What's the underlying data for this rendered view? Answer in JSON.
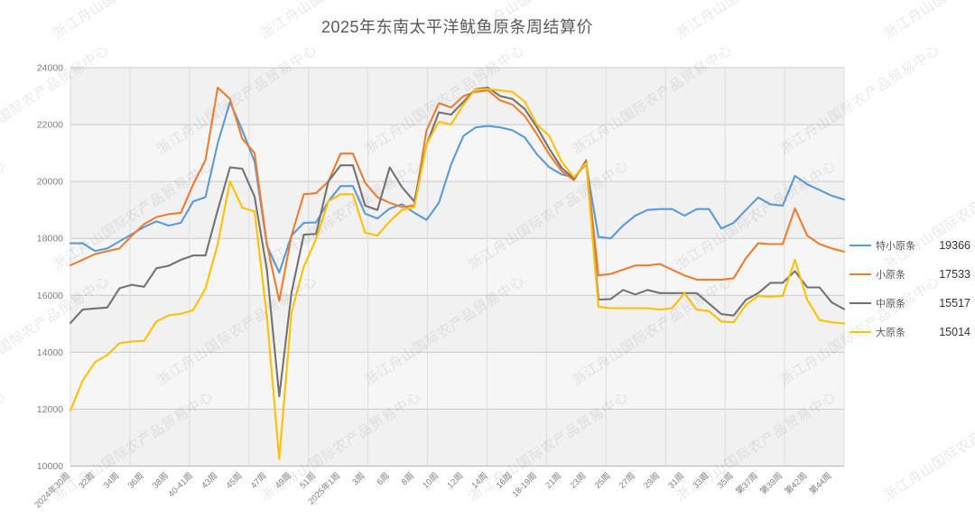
{
  "title": "2025年东南太平洋鱿鱼原条周结算价",
  "watermark": {
    "text": "浙江舟山国际农产品贸易中心"
  },
  "legend": {
    "items": [
      {
        "name": "特小原条",
        "value": "19366",
        "color": "#5B9BD5"
      },
      {
        "name": "小原条",
        "value": "17533",
        "color": "#ED7D31"
      },
      {
        "name": "中原条",
        "value": "15517",
        "color": "#737373"
      },
      {
        "name": "大原条",
        "value": "15014",
        "color": "#FFC000"
      }
    ]
  },
  "chart_data": {
    "type": "line",
    "title": "2025年东南太平洋鱿鱼原条周结算价",
    "xlabel": "",
    "ylabel": "",
    "ylim": [
      10000,
      24000
    ],
    "y_ticks": [
      24000,
      22000,
      20000,
      18000,
      16000,
      14000,
      12000,
      10000
    ],
    "grid": true,
    "legend_position": "right",
    "points_per_label": 2,
    "x_tick_labels": [
      "2024年30周",
      "32周",
      "34周",
      "36周",
      "38周",
      "40-41周",
      "43周",
      "45周",
      "47周",
      "49周",
      "51周",
      "2025年1周",
      "3周",
      "6周",
      "8周",
      "10周",
      "12周",
      "14周",
      "16周",
      "18-19周",
      "21周",
      "23周",
      "25周",
      "27周",
      "29周",
      "31周",
      "33周",
      "35周",
      "第37周",
      "第39周",
      "第42周",
      "第44周"
    ],
    "series": [
      {
        "name": "特小原条",
        "color": "#5B9BD5",
        "values": [
          17830,
          17830,
          17560,
          17650,
          17900,
          18150,
          18400,
          18600,
          18450,
          18550,
          19300,
          19450,
          21350,
          22800,
          21800,
          20700,
          17750,
          16800,
          18100,
          18550,
          18560,
          19300,
          19840,
          19840,
          18870,
          18700,
          19050,
          19200,
          18900,
          18650,
          19250,
          20600,
          21600,
          21900,
          21950,
          21900,
          21800,
          21550,
          20950,
          20500,
          20250,
          20150,
          20600,
          18050,
          18000,
          18450,
          18800,
          19000,
          19030,
          19030,
          18800,
          19030,
          19030,
          18350,
          18550,
          19000,
          19440,
          19200,
          19150,
          20200,
          19900,
          19700,
          19500,
          19366
        ]
      },
      {
        "name": "小原条",
        "color": "#ED7D31",
        "values": [
          17060,
          17250,
          17450,
          17550,
          17650,
          18100,
          18500,
          18750,
          18850,
          18900,
          19900,
          20750,
          23300,
          22900,
          21500,
          21000,
          17800,
          15800,
          18100,
          19550,
          19590,
          20000,
          20980,
          20980,
          19950,
          19450,
          19250,
          19100,
          19160,
          21800,
          22750,
          22600,
          23000,
          23150,
          23200,
          22850,
          22700,
          22300,
          21650,
          20950,
          20370,
          20050,
          20750,
          16700,
          16750,
          16900,
          17050,
          17050,
          17100,
          16900,
          16700,
          16550,
          16550,
          16550,
          16600,
          17300,
          17830,
          17800,
          17800,
          19050,
          18100,
          17800,
          17650,
          17533
        ]
      },
      {
        "name": "中原条",
        "color": "#737373",
        "values": [
          15030,
          15500,
          15540,
          15570,
          16250,
          16370,
          16300,
          16950,
          17040,
          17250,
          17400,
          17400,
          19000,
          20500,
          20450,
          19470,
          16890,
          12450,
          16100,
          18130,
          18160,
          20000,
          20570,
          20570,
          19150,
          19000,
          20500,
          19800,
          19300,
          21300,
          22430,
          22350,
          22800,
          23250,
          23300,
          23000,
          22900,
          22550,
          21900,
          21150,
          20480,
          20100,
          20700,
          15850,
          15870,
          16190,
          16030,
          16190,
          16080,
          16080,
          16080,
          16080,
          15710,
          15340,
          15290,
          15840,
          16080,
          16440,
          16440,
          16850,
          16280,
          16280,
          15750,
          15517
        ]
      },
      {
        "name": "大原条",
        "color": "#FFC000",
        "values": [
          11950,
          13000,
          13650,
          13900,
          14320,
          14380,
          14400,
          15080,
          15300,
          15350,
          15480,
          16240,
          17800,
          20000,
          19080,
          18950,
          15240,
          10250,
          15400,
          17000,
          17980,
          19300,
          19550,
          19550,
          18200,
          18100,
          18600,
          19000,
          19100,
          21300,
          22100,
          22000,
          22700,
          23240,
          23250,
          23200,
          23150,
          22800,
          22000,
          21600,
          20700,
          20150,
          20650,
          15600,
          15550,
          15550,
          15550,
          15550,
          15500,
          15550,
          16080,
          15500,
          15440,
          15080,
          15050,
          15660,
          15980,
          15950,
          15980,
          17250,
          15840,
          15130,
          15050,
          15014
        ]
      }
    ]
  }
}
